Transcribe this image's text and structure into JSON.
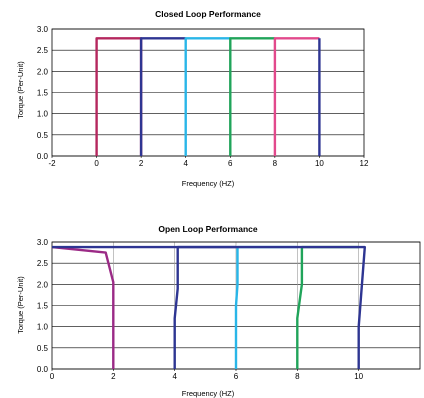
{
  "chart_data": [
    {
      "type": "line",
      "title": "Closed Loop Performance",
      "xlabel": "Frequency (HZ)",
      "ylabel": "Torque (Per-Unit)",
      "xlim": [
        -2,
        12
      ],
      "ylim": [
        0,
        3.0
      ],
      "xticks": [
        "-2",
        "0",
        "2",
        "4",
        "6",
        "8",
        "10",
        "12"
      ],
      "yticks": [
        "0.0",
        "0.5",
        "1.0",
        "1.5",
        "2.0",
        "2.5",
        "3.0"
      ],
      "grid": "horizontal",
      "series": [
        {
          "color": "#b5275e",
          "points": [
            [
              0,
              0
            ],
            [
              0,
              2.78
            ],
            [
              2,
              2.78
            ],
            [
              2,
              0
            ]
          ]
        },
        {
          "color": "#2e3592",
          "points": [
            [
              2,
              0
            ],
            [
              2,
              2.78
            ],
            [
              4,
              2.78
            ]
          ]
        },
        {
          "color": "#29b6e8",
          "points": [
            [
              4,
              0
            ],
            [
              4,
              2.78
            ],
            [
              6,
              2.78
            ]
          ]
        },
        {
          "color": "#20a45a",
          "points": [
            [
              6,
              0
            ],
            [
              6,
              2.78
            ],
            [
              8,
              2.78
            ]
          ]
        },
        {
          "color": "#e2498c",
          "points": [
            [
              8,
              0
            ],
            [
              8,
              2.78
            ],
            [
              10,
              2.78
            ]
          ]
        },
        {
          "color": "#2e3592",
          "points": [
            [
              10,
              0
            ],
            [
              10,
              2.78
            ]
          ]
        }
      ]
    },
    {
      "type": "line",
      "title": "Open Loop Performance",
      "xlabel": "Frequency (HZ)",
      "ylabel": "Torque (Per-Unit)",
      "xlim": [
        0,
        12
      ],
      "ylim": [
        0,
        3.0
      ],
      "xticks": [
        "0",
        "2",
        "4",
        "6",
        "8",
        "10"
      ],
      "yticks": [
        "0.0",
        "0.5",
        "1.0",
        "1.5",
        "2.0",
        "2.5",
        "3.0"
      ],
      "grid": "horizontal",
      "series": [
        {
          "color": "#9b2a86",
          "points": [
            [
              2,
              0
            ],
            [
              2,
              2.05
            ],
            [
              1.75,
              2.75
            ],
            [
              0,
              2.88
            ]
          ]
        },
        {
          "color": "#2e3592",
          "points": [
            [
              4,
              0
            ],
            [
              4,
              1.2
            ],
            [
              4.1,
              1.9
            ],
            [
              4.1,
              2.88
            ],
            [
              6,
              2.88
            ]
          ]
        },
        {
          "color": "#29b6e8",
          "points": [
            [
              6,
              0
            ],
            [
              6,
              1.5
            ],
            [
              6.05,
              2.0
            ],
            [
              6.05,
              2.88
            ],
            [
              8,
              2.88
            ]
          ]
        },
        {
          "color": "#20a45a",
          "points": [
            [
              8,
              0
            ],
            [
              8,
              1.2
            ],
            [
              8.15,
              2.0
            ],
            [
              8.15,
              2.88
            ],
            [
              10,
              2.88
            ]
          ]
        },
        {
          "color": "#2e3592",
          "points": [
            [
              10,
              0
            ],
            [
              10,
              1.0
            ],
            [
              10.2,
              2.88
            ],
            [
              10.2,
              2.88
            ],
            [
              0,
              2.88
            ]
          ]
        }
      ]
    }
  ]
}
